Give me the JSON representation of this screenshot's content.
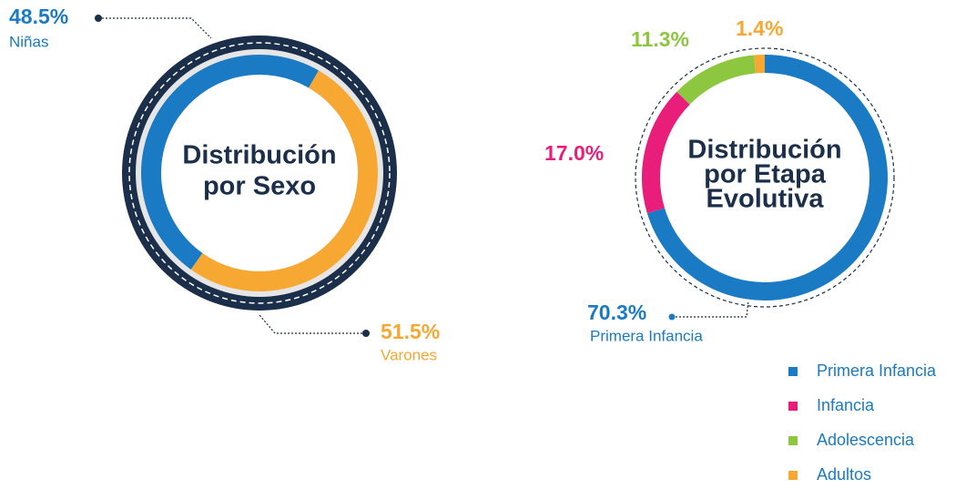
{
  "chart_data": [
    {
      "type": "pie",
      "title": [
        "Distribución",
        "por Sexo"
      ],
      "categories": [
        "Niñas",
        "Varones"
      ],
      "values": [
        48.5,
        51.5
      ],
      "value_labels": [
        "48.5%",
        "51.5%"
      ],
      "colors": [
        "#1a7ac4",
        "#f7a833"
      ]
    },
    {
      "type": "pie",
      "title": [
        "Distribución",
        "por Etapa",
        "Evolutiva"
      ],
      "categories": [
        "Primera Infancia",
        "Infancia",
        "Adolescencia",
        "Adultos"
      ],
      "values": [
        70.3,
        17.0,
        11.3,
        1.4
      ],
      "value_labels": [
        "70.3%",
        "17.0%",
        "11.3%",
        "1.4%"
      ],
      "colors": [
        "#1a7ac4",
        "#e91e7a",
        "#8dc63f",
        "#f7a833"
      ],
      "legend": true
    }
  ]
}
